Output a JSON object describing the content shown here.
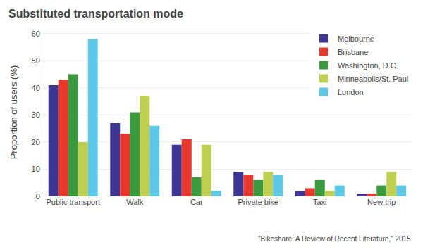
{
  "chart_data": {
    "type": "bar",
    "title": "Substituted transportation mode",
    "y_label": "Proportion of users (%)",
    "categories": [
      "Public transport",
      "Walk",
      "Car",
      "Private bike",
      "Taxi",
      "New trip"
    ],
    "series": [
      {
        "name": "Melbourne",
        "color": "#3D3594",
        "values": [
          41,
          27,
          19,
          9,
          2,
          1
        ]
      },
      {
        "name": "Brisbane",
        "color": "#E8372C",
        "values": [
          43,
          23,
          21,
          8,
          3,
          1
        ]
      },
      {
        "name": "Washington, D.C.",
        "color": "#3B9A3E",
        "values": [
          45,
          31,
          7,
          6,
          6,
          4
        ]
      },
      {
        "name": "Minneapolis/St. Paul",
        "color": "#BFCF52",
        "values": [
          20,
          37,
          19,
          9,
          2,
          9
        ]
      },
      {
        "name": "London",
        "color": "#5BC8E8",
        "values": [
          58,
          26,
          2,
          8,
          4,
          4
        ]
      }
    ],
    "ylim": [
      0,
      62
    ],
    "yticks": [
      0,
      10,
      20,
      30,
      40,
      50,
      60
    ],
    "grid": true,
    "legend": "upper right",
    "footnote": "\"Bikeshare: A Review of Recent Literature,\" 2015"
  }
}
